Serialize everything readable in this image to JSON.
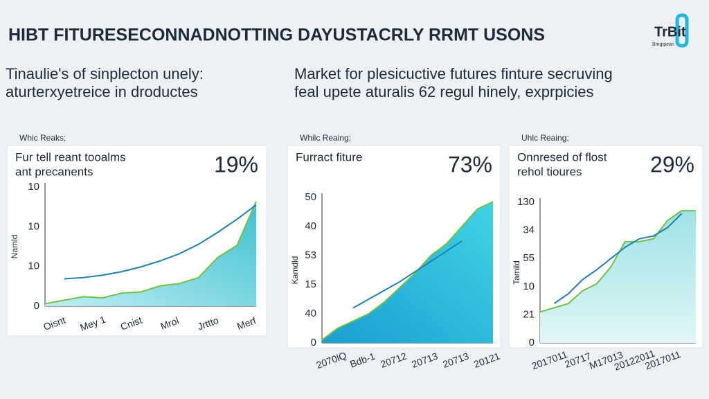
{
  "header": {
    "title": "HIBT FITURESECONNADNOTTING DAYUSTACRLY RRMT USONS",
    "logo": "TrBit",
    "logo_sub": "Bmgtpean",
    "left_subtitle": [
      "Tinaulie's of sinplecton unely:",
      "aturterxyetreice in droductes"
    ],
    "right_subtitle": [
      "Market for plesicuctive futures finture secruving",
      "feal upete aturalis 62 regul hinely, exprpicies"
    ]
  },
  "chart_data": [
    {
      "type": "area-line",
      "label": "Whic Reaks;",
      "title": [
        "Fur tell reant tooalms",
        "ant precanents"
      ],
      "headline": "19%",
      "y_title": "Namld",
      "y_labels": [
        "10",
        "10",
        "10",
        "0"
      ],
      "categories": [
        "Oisnt",
        null,
        "Mey 1",
        null,
        "Cnist",
        null,
        "Mrol",
        null,
        "Jrttto",
        null,
        "Merf",
        null
      ],
      "ylim": [
        0,
        100
      ],
      "series": [
        {
          "color": "#1f7fb5",
          "values": [
            null,
            23,
            24,
            26,
            29,
            33,
            38,
            44,
            52,
            62,
            73,
            85
          ]
        },
        {
          "color": "#5ac8d8",
          "values": [
            2,
            5,
            8,
            7,
            11,
            12,
            17,
            19,
            24,
            41,
            51,
            88
          ]
        }
      ]
    },
    {
      "type": "area-line",
      "label": "Whilc Reaing;",
      "title": [
        "Furract fiture"
      ],
      "headline": "73%",
      "y_title": "Kamdld",
      "y_labels": [
        "50",
        "40",
        "53",
        "15",
        "40",
        "0"
      ],
      "categories": [
        "2070lQ",
        null,
        "Bdb-1",
        null,
        "20712",
        null,
        "20713",
        null,
        "20713",
        null,
        "20121",
        null
      ],
      "ylim": [
        0,
        100
      ],
      "series": [
        {
          "color": "#1f7fb5",
          "values": [
            null,
            null,
            24,
            30,
            36,
            42,
            49,
            56,
            63,
            70,
            null,
            null
          ]
        },
        {
          "color": "#27b5d6",
          "values": [
            2,
            10,
            15,
            20,
            28,
            38,
            48,
            60,
            68,
            80,
            92,
            97
          ]
        }
      ]
    },
    {
      "type": "area-line",
      "label": "Uhlc Reaing;",
      "title": [
        "Onnresed of flost",
        "rehol tioures"
      ],
      "headline": "29%",
      "y_title": "Tamild",
      "y_labels": [
        "130",
        "34",
        "55",
        "10",
        "21",
        "0"
      ],
      "categories": [
        "2017011",
        null,
        "20717",
        null,
        "M17013",
        null,
        "20122011",
        null,
        "2017011",
        null,
        null,
        null
      ],
      "ylim": [
        0,
        100
      ],
      "series": [
        {
          "color": "#1f7fb5",
          "values": [
            null,
            28,
            35,
            45,
            52,
            60,
            68,
            74,
            76,
            82,
            92,
            null
          ]
        },
        {
          "color": "#8fdbe0",
          "values": [
            22,
            25,
            28,
            37,
            42,
            54,
            72,
            72,
            74,
            87,
            94,
            94
          ]
        }
      ]
    }
  ]
}
